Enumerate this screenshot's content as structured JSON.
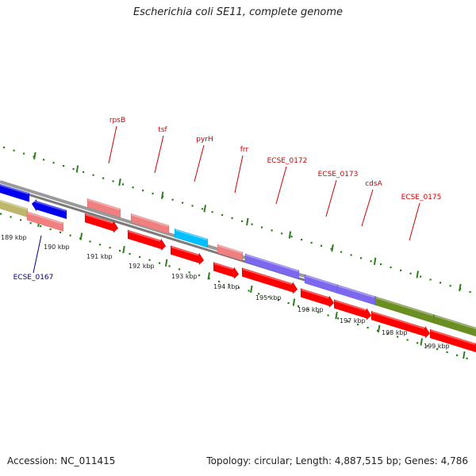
{
  "title": "Escherichia coli SE11, complete genome",
  "accession_text": "Accession: NC_011415",
  "summary_text": "Topology: circular; Length: 4,887,515 bp; Genes: 4,786",
  "colors": {
    "backbone": "#8c8c8c",
    "tick_major": "#2e7d1e",
    "tick_minor": "#2e7d1e",
    "label_red": "#cc0000",
    "label_blue": "#00008b",
    "cds_red": "#ff0000",
    "pink": "#f08080",
    "blue": "#0000ee",
    "cyan": "#00bfff",
    "purple": "#7b68ee",
    "olive": "#6b8e23",
    "khaki": "#bdb76b"
  },
  "scale_labels": [
    "189 kbp",
    "190 kbp",
    "191 kbp",
    "192 kbp",
    "193 kbp",
    "194 kbp",
    "195 kbp",
    "196 kbp",
    "197 kbp",
    "198 kbp",
    "199 kbp"
  ],
  "gene_labels": [
    {
      "name": "rpsB",
      "color": "red"
    },
    {
      "name": "tsf",
      "color": "red"
    },
    {
      "name": "pyrH",
      "color": "red"
    },
    {
      "name": "frr",
      "color": "red"
    },
    {
      "name": "ECSE_0172",
      "color": "red"
    },
    {
      "name": "ECSE_0173",
      "color": "red"
    },
    {
      "name": "cdsA",
      "color": "red"
    },
    {
      "name": "ECSE_0175",
      "color": "red"
    },
    {
      "name": "ECSE_0167",
      "color": "blue"
    }
  ]
}
